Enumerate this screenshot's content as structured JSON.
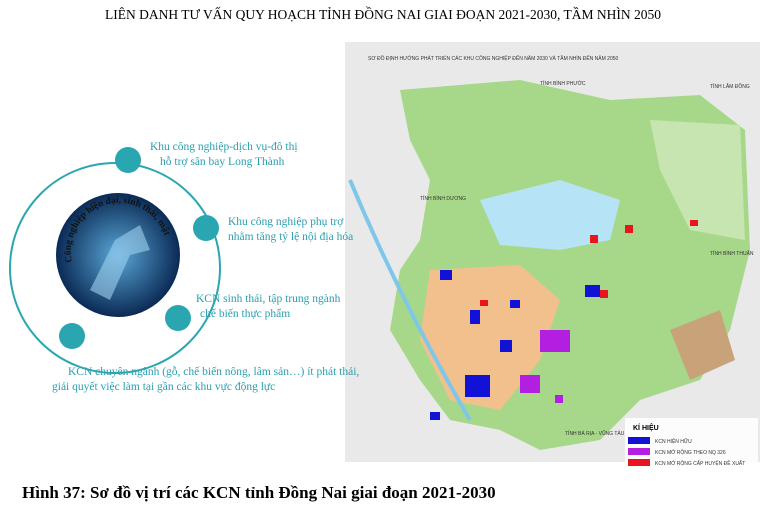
{
  "header": {
    "title": "LIÊN DANH TƯ VẤN QUY HOẠCH TỈNH ĐỒNG NAI GIAI ĐOẠN 2021-2030, TẦM NHÌN 2050"
  },
  "infographic": {
    "center_label": "Công nghiệp hiện đại, sinh thái, mật độ vừa phải",
    "items": [
      {
        "lines": [
          "Khu công nghiệp-dịch vụ-đô thị",
          "hỗ trợ sân bay Long Thành"
        ]
      },
      {
        "lines": [
          "Khu công nghiệp phụ trợ",
          "nhằm tăng tỷ lệ nội địa hóa"
        ]
      },
      {
        "lines": [
          "KCN sinh thái, tập trung ngành",
          "chế biến thực phẩm"
        ]
      },
      {
        "lines": [
          "KCN chuyên ngành (gỗ, chế biến nông, lâm sản…) ít phát thải,",
          "giải quyết việc làm tại gần các khu vực động lực"
        ]
      }
    ]
  },
  "map": {
    "title": "SƠ ĐỒ ĐỊNH HƯỚNG PHÁT TRIỂN CÁC KHU CÔNG NGHIỆP ĐẾN NĂM 2030 VÀ TẦM NHÌN ĐẾN NĂM 2050",
    "place_labels": [
      "TỈNH BÌNH PHƯỚC",
      "TỈNH LÂM ĐỒNG",
      "TỈNH BÌNH DƯƠNG",
      "TỈNH BÌNH THUẬN",
      "TỈNH BÀ RỊA - VŨNG TÀU"
    ],
    "legend": {
      "title": "KÍ HIỆU",
      "items": [
        {
          "label": "KCN HIỆN HỮU",
          "color": "#1212d6"
        },
        {
          "label": "KCN MỞ RỘNG THEO NQ 326",
          "color": "#b21fe0"
        },
        {
          "label": "KCN MỞ RỘNG CẤP HUYỆN ĐỀ XUẤT",
          "color": "#e8141e"
        }
      ]
    }
  },
  "caption": "Hình 37: Sơ đồ vị trí các KCN tỉnh Đồng Nai giai đoạn 2021-2030"
}
